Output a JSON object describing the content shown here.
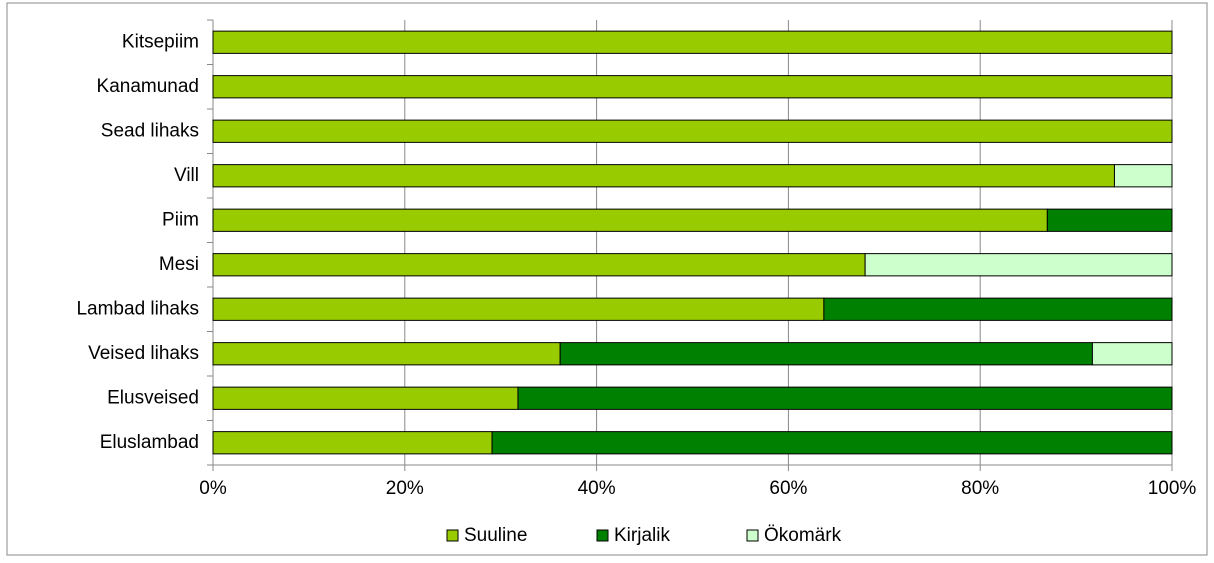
{
  "chart_data": {
    "type": "stacked_bar_horizontal",
    "categories": [
      "Kitsepiim",
      "Kanamunad",
      "Sead lihaks",
      "Vill",
      "Piim",
      "Mesi",
      "Lambad lihaks",
      "Veised lihaks",
      "Elusveised",
      "Eluslambad"
    ],
    "series": [
      {
        "name": "Suuline",
        "color": "#99cc00",
        "values": [
          100,
          100,
          100,
          94,
          87,
          68,
          63.7,
          36.2,
          31.8,
          29.1
        ]
      },
      {
        "name": "Kirjalik",
        "color": "#008000",
        "values": [
          0,
          0,
          0,
          0,
          13,
          0,
          36.3,
          55.5,
          68.2,
          70.9
        ]
      },
      {
        "name": "Ökomärk",
        "color": "#ccffcc",
        "values": [
          0,
          0,
          0,
          6,
          0,
          32,
          0,
          8.3,
          0,
          0
        ]
      }
    ],
    "xlim": [
      0,
      100
    ],
    "xticks": [
      {
        "value": 0,
        "label": "0%"
      },
      {
        "value": 20,
        "label": "20%"
      },
      {
        "value": 40,
        "label": "40%"
      },
      {
        "value": 60,
        "label": "60%"
      },
      {
        "value": 80,
        "label": "80%"
      },
      {
        "value": 100,
        "label": "100%"
      }
    ],
    "grid": true,
    "legend": "bottom"
  }
}
